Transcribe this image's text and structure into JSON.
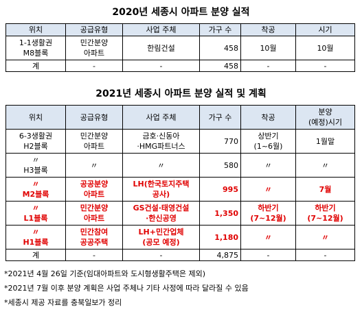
{
  "tables": [
    {
      "title": "2020년 세종시 아파트 분양 실적",
      "header": [
        "위치",
        "공급유형",
        "사업 주체",
        "가구 수",
        "착공",
        "시기"
      ],
      "rows": [
        [
          "1-1생활권\nM8블록",
          "민간분양\n아파트",
          "한림건설",
          "458",
          "10월",
          "10월"
        ],
        [
          "계",
          "-",
          "-",
          "458",
          "-",
          "-"
        ]
      ]
    },
    {
      "title": "2021년 세종시 아파트 분양 실적 및 계획",
      "header": [
        "위치",
        "공급유형",
        "사업 주체",
        "가구 수",
        "착공",
        "분양\n(예정)시기"
      ],
      "rows": [
        [
          "6-3생활권\nH2블록",
          "민간분양\n아파트",
          "금호·신동아\n·HMG파트너스",
          "770",
          "상반기\n(1~6월)",
          "1월말"
        ],
        [
          "〃\nH3블록",
          "〃",
          "〃",
          "580",
          "〃",
          "〃"
        ],
        [
          "〃\nM2블록",
          "공공분양\n아파트",
          "LH(한국토지주택\n공사)",
          "995",
          "〃",
          "7월"
        ],
        [
          "〃\nL1블록",
          "민간분양\n아파트",
          "GS건설·태영건설\n·한신공영",
          "1,350",
          "하반기\n(7~12월)",
          "하반기\n(7~12월)"
        ],
        [
          "〃\nH1블록",
          "민간참여\n공공주택",
          "LH+민간업체\n(공모 예정)",
          "1,180",
          "〃",
          "〃"
        ],
        [
          "계",
          "-",
          "-",
          "4,875",
          "-",
          "-"
        ]
      ]
    }
  ],
  "notes": [
    "*2021년 4월 26일 기준(임대아파트와 도시형생활주택은 제외)",
    "*2021년 7월 이후 분양 계획은 사업 주체나 기타 사정에 따라 달라질 수 있음",
    "*세종시 제공 자료를 충북일보가 정리"
  ]
}
